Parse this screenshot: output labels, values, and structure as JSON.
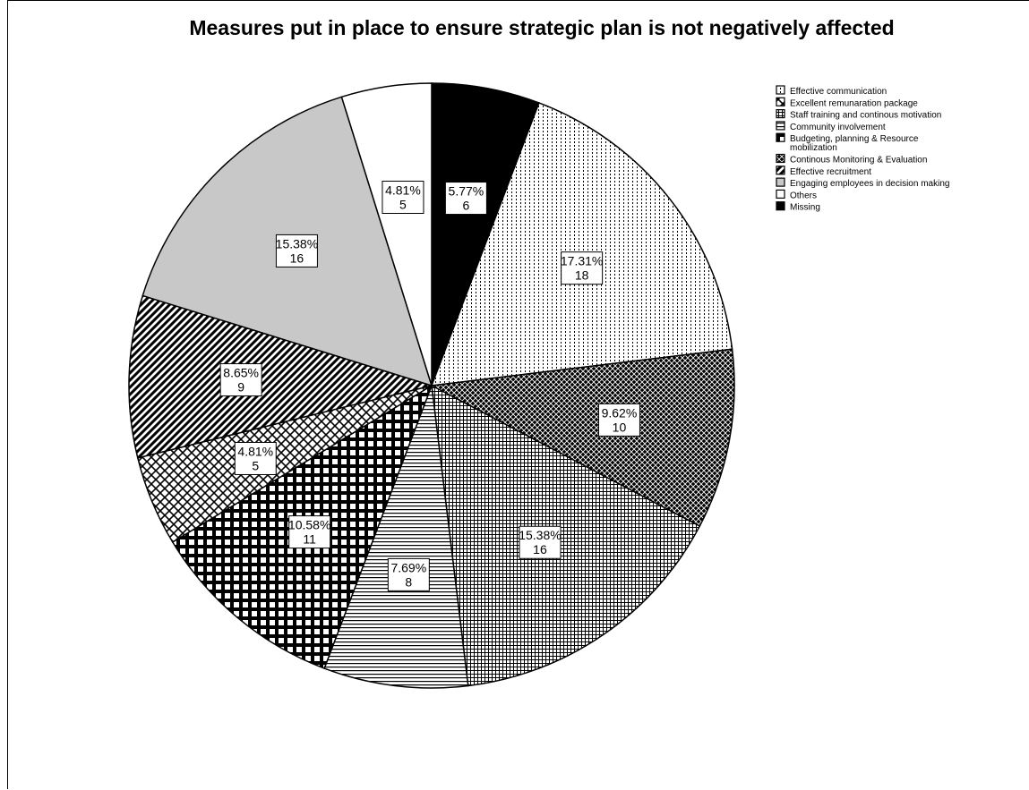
{
  "chart_data": {
    "type": "pie",
    "title": "Measures put in place to ensure strategic plan is not negatively affected",
    "legend_position": "top-right",
    "slices": [
      {
        "label": "Missing",
        "percent": "5.77%",
        "count": 6,
        "pattern": "solid-black"
      },
      {
        "label": "Effective communication",
        "percent": "17.31%",
        "count": 18,
        "pattern": "dots"
      },
      {
        "label": "Continous Monitoring & Evaluation",
        "percent": "9.62%",
        "count": 10,
        "pattern": "diag-cross-dense"
      },
      {
        "label": "Staff training and continous motivation",
        "percent": "15.38%",
        "count": 16,
        "pattern": "grid"
      },
      {
        "label": "Community involvement",
        "percent": "7.69%",
        "count": 8,
        "pattern": "horizontal-lines"
      },
      {
        "label": "Budgeting, planning & Resource mobilization",
        "percent": "10.58%",
        "count": 11,
        "pattern": "checker"
      },
      {
        "label": "Excellent remunaration package",
        "percent": "4.81%",
        "count": 5,
        "pattern": "crosshatch"
      },
      {
        "label": "Effective recruitment",
        "percent": "8.65%",
        "count": 9,
        "pattern": "diagonal"
      },
      {
        "label": "Engaging employees in decision making",
        "percent": "15.38%",
        "count": 16,
        "pattern": "solid-gray"
      },
      {
        "label": "Others",
        "percent": "4.81%",
        "count": 5,
        "pattern": "solid-white"
      }
    ],
    "legend": [
      {
        "label": "Effective communication",
        "pattern": "dots"
      },
      {
        "label": "Excellent remunaration package",
        "pattern": "crosshatch"
      },
      {
        "label": "Staff training and continous motivation",
        "pattern": "grid"
      },
      {
        "label": "Community involvement",
        "pattern": "horizontal-lines"
      },
      {
        "label": "Budgeting, planning & Resource mobilization",
        "pattern": "checker"
      },
      {
        "label": "Continous Monitoring & Evaluation",
        "pattern": "diag-cross-dense"
      },
      {
        "label": "Effective recruitment",
        "pattern": "diagonal"
      },
      {
        "label": "Engaging employees in decision making",
        "pattern": "solid-gray"
      },
      {
        "label": "Others",
        "pattern": "solid-white"
      },
      {
        "label": "Missing",
        "pattern": "solid-black"
      }
    ]
  }
}
